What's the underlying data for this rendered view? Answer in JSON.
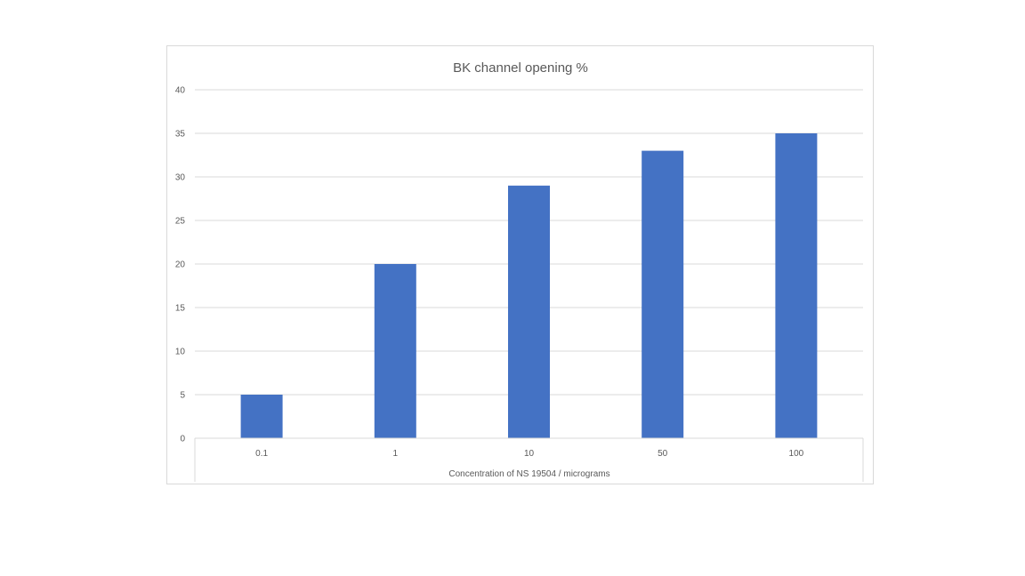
{
  "chart_data": {
    "type": "bar",
    "title": "BK channel opening %",
    "xlabel": "Concentration of NS 19504 / micrograms",
    "ylabel": "",
    "categories": [
      "0.1",
      "1",
      "10",
      "50",
      "100"
    ],
    "values": [
      5,
      20,
      29,
      33,
      35
    ],
    "ylim": [
      0,
      40
    ],
    "yticks": [
      0,
      5,
      10,
      15,
      20,
      25,
      30,
      35,
      40
    ],
    "grid": true,
    "legend": "none",
    "bar_color": "#4472c4"
  }
}
